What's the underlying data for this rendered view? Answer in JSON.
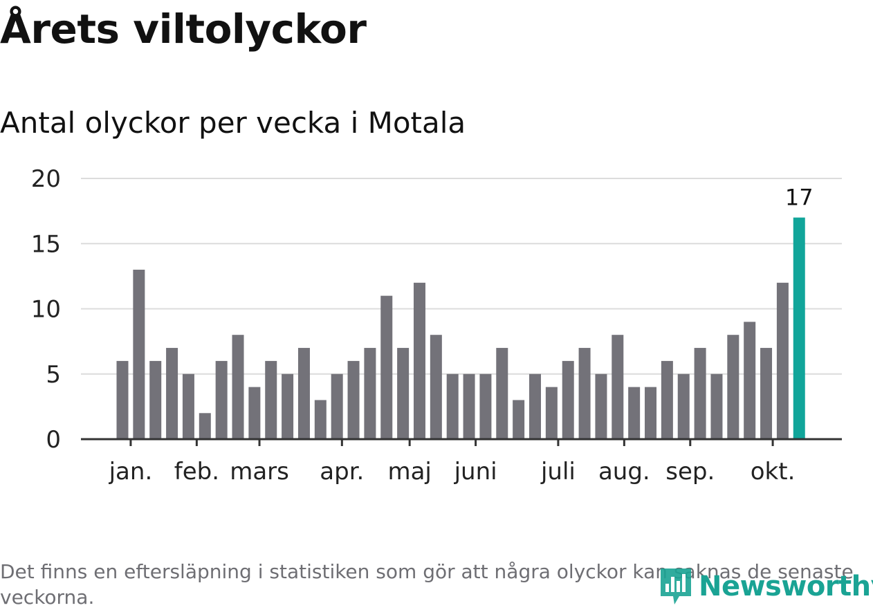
{
  "title": "Årets viltolyckor",
  "subtitle": "Antal olyckor per vecka i Motala",
  "footnote": "Det finns en eftersläpning i statistiken som gör att några olyckor kan saknas de senaste veckorna.",
  "brand": {
    "name": "Newsworthy",
    "icon": "newsworthy-logo-icon"
  },
  "colors": {
    "bar": "#737279",
    "highlight": "#11a59a",
    "grid": "#dcdcdc",
    "axis": "#333333"
  },
  "chart_data": {
    "type": "bar",
    "title": "Antal olyckor per vecka i Motala",
    "xlabel": "",
    "ylabel": "",
    "ylim": [
      0,
      20
    ],
    "yticks": [
      0,
      5,
      10,
      15,
      20
    ],
    "grid": true,
    "values": [
      6,
      13,
      6,
      7,
      5,
      2,
      6,
      8,
      4,
      6,
      5,
      7,
      3,
      5,
      6,
      7,
      11,
      7,
      12,
      8,
      5,
      5,
      5,
      7,
      3,
      5,
      4,
      6,
      7,
      5,
      8,
      4,
      4,
      6,
      5,
      7,
      5,
      8,
      9,
      7,
      12,
      17
    ],
    "highlight_index": 41,
    "highlight_label": "17",
    "month_ticks": [
      {
        "label": "jan.",
        "index": 0.5
      },
      {
        "label": "feb.",
        "index": 4.5
      },
      {
        "label": "mars",
        "index": 8.3
      },
      {
        "label": "apr.",
        "index": 13.3
      },
      {
        "label": "maj",
        "index": 17.4
      },
      {
        "label": "juni",
        "index": 21.4
      },
      {
        "label": "juli",
        "index": 26.4
      },
      {
        "label": "aug.",
        "index": 30.4
      },
      {
        "label": "sep.",
        "index": 34.4
      },
      {
        "label": "okt.",
        "index": 39.4
      }
    ]
  }
}
